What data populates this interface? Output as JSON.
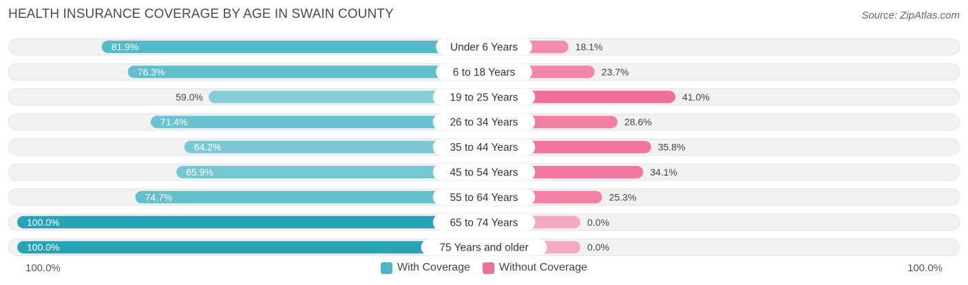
{
  "header": {
    "title": "HEALTH INSURANCE COVERAGE BY AGE IN SWAIN COUNTY",
    "source": "Source: ZipAtlas.com"
  },
  "colors": {
    "with_coverage": "#4db6c6",
    "with_coverage_strong": "#27a3b7",
    "without_coverage": "#f07098",
    "without_coverage_light": "#f5a9c2",
    "track": "#f1f1f1"
  },
  "axis": {
    "left_label": "100.0%",
    "right_label": "100.0%"
  },
  "legend": {
    "with_label": "With Coverage",
    "without_label": "Without Coverage"
  },
  "chart_data": {
    "type": "bar",
    "orientation": "diverging-horizontal",
    "title": "HEALTH INSURANCE COVERAGE BY AGE IN SWAIN COUNTY",
    "xlim": [
      0,
      100
    ],
    "categories": [
      "Under 6 Years",
      "6 to 18 Years",
      "19 to 25 Years",
      "26 to 34 Years",
      "35 to 44 Years",
      "45 to 54 Years",
      "55 to 64 Years",
      "65 to 74 Years",
      "75 Years and older"
    ],
    "series": [
      {
        "name": "With Coverage",
        "values": [
          81.9,
          76.3,
          59.0,
          71.4,
          64.2,
          65.9,
          74.7,
          100.0,
          100.0
        ],
        "labels": [
          "81.9%",
          "76.3%",
          "59.0%",
          "71.4%",
          "64.2%",
          "65.9%",
          "74.7%",
          "100.0%",
          "100.0%"
        ]
      },
      {
        "name": "Without Coverage",
        "values": [
          18.1,
          23.7,
          41.0,
          28.6,
          35.8,
          34.1,
          25.3,
          0.0,
          0.0
        ],
        "labels": [
          "18.1%",
          "23.7%",
          "41.0%",
          "28.6%",
          "35.8%",
          "34.1%",
          "25.3%",
          "0.0%",
          "0.0%"
        ]
      }
    ],
    "legend": [
      "With Coverage",
      "Without Coverage"
    ]
  }
}
